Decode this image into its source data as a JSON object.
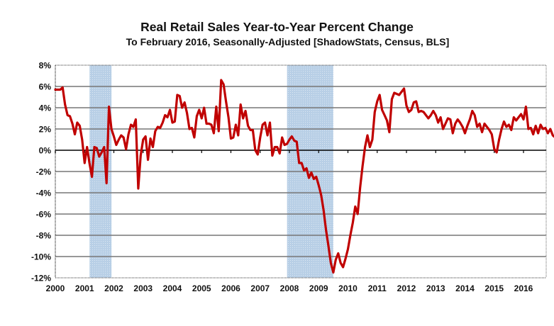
{
  "chart_data": {
    "type": "line",
    "title": "Real Retail Sales Year-to-Year Percent Change",
    "subtitle": "To February 2016, Seasonally-Adjusted [ShadowStats, Census, BLS]",
    "xlabel": "",
    "ylabel": "",
    "x_start": "2000-01",
    "x_end": "2016-02",
    "frequency": "monthly",
    "xlim": [
      2000,
      2016.2
    ],
    "ylim": [
      -12,
      8
    ],
    "grid": true,
    "legend": "none",
    "x_ticks": [
      "2000",
      "2001",
      "2002",
      "2003",
      "2004",
      "2005",
      "2006",
      "2007",
      "2008",
      "2009",
      "2010",
      "2011",
      "2012",
      "2013",
      "2014",
      "2015",
      "2016"
    ],
    "y_ticks": [
      "8%",
      "6%",
      "4%",
      "2%",
      "0%",
      "-2%",
      "-4%",
      "-6%",
      "-8%",
      "-10%",
      "-12%"
    ],
    "y_tick_values": [
      8,
      6,
      4,
      2,
      0,
      -2,
      -4,
      -6,
      -8,
      -10,
      -12
    ],
    "recessions": [
      {
        "start": 2001.17,
        "end": 2001.92,
        "label": "2001 recession"
      },
      {
        "start": 2007.92,
        "end": 2009.5,
        "label": "2008-2009 recession"
      }
    ],
    "line_color": "#c00000",
    "recession_color": "#b8cfe6",
    "series": [
      {
        "name": "Real Retail Sales Yr/Yr % Change",
        "values": [
          5.7,
          5.7,
          5.7,
          5.9,
          4.3,
          3.3,
          3.2,
          2.5,
          1.5,
          2.6,
          2.3,
          1.0,
          -1.2,
          0.3,
          -1.2,
          -2.5,
          0.3,
          0.2,
          -0.6,
          -0.2,
          0.3,
          -3.1,
          4.1,
          2.0,
          1.3,
          0.5,
          1.0,
          1.4,
          1.2,
          0.1,
          1.5,
          2.4,
          2.2,
          2.9,
          -3.6,
          -0.5,
          1.0,
          1.3,
          -0.9,
          1.1,
          0.3,
          1.8,
          2.2,
          2.1,
          2.6,
          3.3,
          3.1,
          3.8,
          2.6,
          2.7,
          5.2,
          5.1,
          4.0,
          4.5,
          3.5,
          2.0,
          2.1,
          1.2,
          3.2,
          3.8,
          3.0,
          4.0,
          2.5,
          2.5,
          2.4,
          1.6,
          4.1,
          1.8,
          6.6,
          6.2,
          4.6,
          3.1,
          1.1,
          1.2,
          2.4,
          1.4,
          4.3,
          3.0,
          3.7,
          2.3,
          1.9,
          1.9,
          0.0,
          -0.4,
          1.2,
          2.4,
          2.6,
          1.4,
          2.6,
          -0.5,
          0.3,
          0.3,
          -0.3,
          1.2,
          0.5,
          0.6,
          1.0,
          1.3,
          0.9,
          0.8,
          -1.2,
          -1.2,
          -1.9,
          -1.7,
          -2.6,
          -2.1,
          -2.7,
          -2.5,
          -3.3,
          -4.2,
          -5.6,
          -7.5,
          -9.0,
          -10.6,
          -11.5,
          -10.3,
          -9.7,
          -10.6,
          -11.0,
          -10.2,
          -9.3,
          -8.0,
          -6.8,
          -5.3,
          -6.0,
          -3.5,
          -1.5,
          0.3,
          1.4,
          0.3,
          1.0,
          3.6,
          4.6,
          5.2,
          3.8,
          3.3,
          2.8,
          1.7,
          4.8,
          5.4,
          5.3,
          5.2,
          5.5,
          5.8,
          4.2,
          3.6,
          3.8,
          4.5,
          4.6,
          3.6,
          3.7,
          3.6,
          3.3,
          3.0,
          3.3,
          3.7,
          3.3,
          2.6,
          3.1,
          2.0,
          2.5,
          3.0,
          2.9,
          1.6,
          2.5,
          2.9,
          2.6,
          2.2,
          1.6,
          2.3,
          2.9,
          3.7,
          3.3,
          2.2,
          2.5,
          1.7,
          2.5,
          2.2,
          1.9,
          1.5,
          0.1,
          -0.2,
          1.0,
          2.0,
          2.7,
          2.2,
          2.4,
          1.9,
          3.1,
          2.8,
          3.1,
          3.4,
          2.9,
          4.1,
          2.0,
          2.1,
          1.5,
          2.3,
          1.6,
          2.4,
          2.0,
          2.1,
          1.6,
          2.0,
          1.4,
          1.2,
          1.8,
          1.6,
          2.1
        ]
      }
    ]
  }
}
